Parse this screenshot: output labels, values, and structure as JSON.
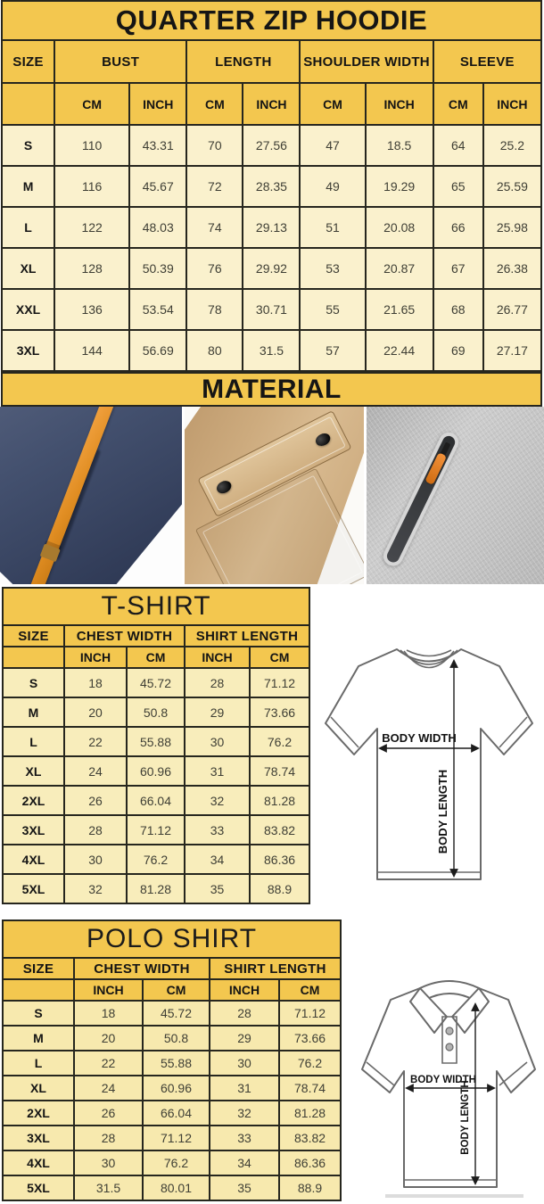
{
  "colors": {
    "header_gold": "#f3c74f",
    "hoodie_row_cream": "#faf1cd",
    "shirt_row_cream": "#f8edbb",
    "table_border": "#26261e",
    "photo_navy": "#3a4663",
    "photo_orange": "#e08d22",
    "photo_khaki": "#cfae82",
    "photo_gray": "#c3c3c3"
  },
  "hoodie": {
    "title": "QUARTER ZIP HOODIE",
    "headers": {
      "size": "SIZE",
      "bust": "BUST",
      "length": "LENGTH",
      "shoulder": "SHOULDER WIDTH",
      "sleeve": "SLEEVE",
      "cm": "CM",
      "inch": "INCH"
    },
    "rows": [
      {
        "size": "S",
        "bust_cm": "110",
        "bust_inch": "43.31",
        "length_cm": "70",
        "length_inch": "27.56",
        "shoulder_cm": "47",
        "shoulder_inch": "18.5",
        "sleeve_cm": "64",
        "sleeve_inch": "25.2"
      },
      {
        "size": "M",
        "bust_cm": "116",
        "bust_inch": "45.67",
        "length_cm": "72",
        "length_inch": "28.35",
        "shoulder_cm": "49",
        "shoulder_inch": "19.29",
        "sleeve_cm": "65",
        "sleeve_inch": "25.59"
      },
      {
        "size": "L",
        "bust_cm": "122",
        "bust_inch": "48.03",
        "length_cm": "74",
        "length_inch": "29.13",
        "shoulder_cm": "51",
        "shoulder_inch": "20.08",
        "sleeve_cm": "66",
        "sleeve_inch": "25.98"
      },
      {
        "size": "XL",
        "bust_cm": "128",
        "bust_inch": "50.39",
        "length_cm": "76",
        "length_inch": "29.92",
        "shoulder_cm": "53",
        "shoulder_inch": "20.87",
        "sleeve_cm": "67",
        "sleeve_inch": "26.38"
      },
      {
        "size": "XXL",
        "bust_cm": "136",
        "bust_inch": "53.54",
        "length_cm": "78",
        "length_inch": "30.71",
        "shoulder_cm": "55",
        "shoulder_inch": "21.65",
        "sleeve_cm": "68",
        "sleeve_inch": "26.77"
      },
      {
        "size": "3XL",
        "bust_cm": "144",
        "bust_inch": "56.69",
        "length_cm": "80",
        "length_inch": "31.5",
        "shoulder_cm": "57",
        "shoulder_inch": "22.44",
        "sleeve_cm": "69",
        "sleeve_inch": "27.17"
      }
    ]
  },
  "material": {
    "title": "MATERIAL",
    "photos": [
      {
        "name": "navy-fleece-orange-drawstring"
      },
      {
        "name": "khaki-fabric-snap-pocket"
      },
      {
        "name": "gray-fleece-zip-pocket"
      }
    ]
  },
  "tshirt": {
    "title": "T-SHIRT",
    "headers": {
      "size": "SIZE",
      "chest": "CHEST WIDTH",
      "length": "SHIRT LENGTH",
      "inch": "INCH",
      "cm": "CM"
    },
    "rows": [
      {
        "size": "S",
        "chest_inch": "18",
        "chest_cm": "45.72",
        "length_inch": "28",
        "length_cm": "71.12"
      },
      {
        "size": "M",
        "chest_inch": "20",
        "chest_cm": "50.8",
        "length_inch": "29",
        "length_cm": "73.66"
      },
      {
        "size": "L",
        "chest_inch": "22",
        "chest_cm": "55.88",
        "length_inch": "30",
        "length_cm": "76.2"
      },
      {
        "size": "XL",
        "chest_inch": "24",
        "chest_cm": "60.96",
        "length_inch": "31",
        "length_cm": "78.74"
      },
      {
        "size": "2XL",
        "chest_inch": "26",
        "chest_cm": "66.04",
        "length_inch": "32",
        "length_cm": "81.28"
      },
      {
        "size": "3XL",
        "chest_inch": "28",
        "chest_cm": "71.12",
        "length_inch": "33",
        "length_cm": "83.82"
      },
      {
        "size": "4XL",
        "chest_inch": "30",
        "chest_cm": "76.2",
        "length_inch": "34",
        "length_cm": "86.36"
      },
      {
        "size": "5XL",
        "chest_inch": "32",
        "chest_cm": "81.28",
        "length_inch": "35",
        "length_cm": "88.9"
      }
    ],
    "diagram": {
      "body_width": "BODY WIDTH",
      "body_length": "BODY LENGTH"
    }
  },
  "polo": {
    "title": "POLO SHIRT",
    "headers": {
      "size": "SIZE",
      "chest": "CHEST WIDTH",
      "length": "SHIRT LENGTH",
      "inch": "INCH",
      "cm": "CM"
    },
    "rows": [
      {
        "size": "S",
        "chest_inch": "18",
        "chest_cm": "45.72",
        "length_inch": "28",
        "length_cm": "71.12"
      },
      {
        "size": "M",
        "chest_inch": "20",
        "chest_cm": "50.8",
        "length_inch": "29",
        "length_cm": "73.66"
      },
      {
        "size": "L",
        "chest_inch": "22",
        "chest_cm": "55.88",
        "length_inch": "30",
        "length_cm": "76.2"
      },
      {
        "size": "XL",
        "chest_inch": "24",
        "chest_cm": "60.96",
        "length_inch": "31",
        "length_cm": "78.74"
      },
      {
        "size": "2XL",
        "chest_inch": "26",
        "chest_cm": "66.04",
        "length_inch": "32",
        "length_cm": "81.28"
      },
      {
        "size": "3XL",
        "chest_inch": "28",
        "chest_cm": "71.12",
        "length_inch": "33",
        "length_cm": "83.82"
      },
      {
        "size": "4XL",
        "chest_inch": "30",
        "chest_cm": "76.2",
        "length_inch": "34",
        "length_cm": "86.36"
      },
      {
        "size": "5XL",
        "chest_inch": "31.5",
        "chest_cm": "80.01",
        "length_inch": "35",
        "length_cm": "88.9"
      }
    ],
    "diagram": {
      "body_width": "BODY WIDTH",
      "body_length": "BODY LENGTH"
    }
  }
}
